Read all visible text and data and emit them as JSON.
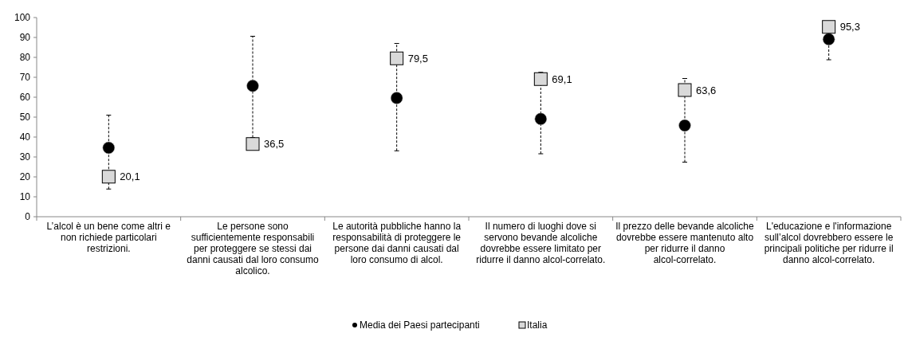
{
  "chart_data": {
    "type": "scatter",
    "categories": [
      "L’alcol è un bene come altri e non richiede particolari restrizioni.",
      "Le persone sono sufficientemente responsabili per proteggere se stessi dai danni causati dal loro consumo alcolico.",
      "Le autorità pubbliche hanno la responsabilità di proteggere le persone dai danni causati dal loro consumo di alcol.",
      "Il numero di luoghi dove si servono bevande alcoliche dovrebbe essere limitato per ridurre il danno alcol-correlato.",
      "Il prezzo delle bevande alcoliche dovrebbe essere mantenuto alto per ridurre il danno alcol-correlato.",
      "L'educazione e l'informazione sull’alcol dovrebbero essere le principali politiche per ridurre il danno alcol-correlato."
    ],
    "series": [
      {
        "name": "Media dei Paesi partecipanti",
        "color": "#000000",
        "marker": "circle",
        "values": [
          34.6,
          65.7,
          59.6,
          49.1,
          45.8,
          89.1
        ],
        "errors": [
          [
            13.9,
            51
          ],
          [
            39.8,
            90.6
          ],
          [
            33.1,
            87
          ],
          [
            31.6,
            72.5
          ],
          [
            27.4,
            69.4
          ],
          [
            78.8,
            92
          ]
        ],
        "line_style": "dashed"
      },
      {
        "name": "Italia",
        "color": "#d9d9d9",
        "marker": "square",
        "values": [
          20.1,
          36.5,
          79.5,
          69.1,
          63.6,
          95.3
        ],
        "value_labels": [
          "20,1",
          "36,5",
          "79,5",
          "69,1",
          "63,6",
          "95,3"
        ]
      }
    ],
    "ylim": [
      0,
      100
    ],
    "yticks": [
      0,
      10,
      20,
      30,
      40,
      50,
      60,
      70,
      80,
      90,
      100
    ],
    "grid": false,
    "legend": "bottom"
  }
}
